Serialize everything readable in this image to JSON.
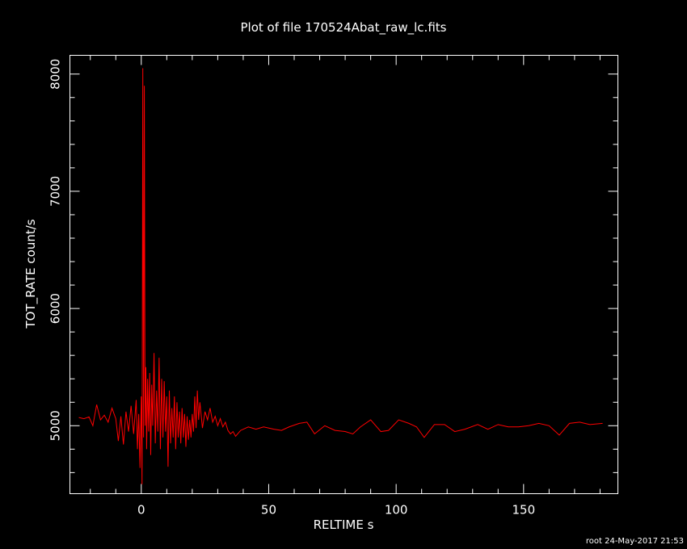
{
  "chart_data": {
    "type": "line",
    "title": "Plot of file 170524Abat_raw_lc.fits",
    "xlabel": "RELTIME  s",
    "ylabel": "TOT_RATE  count/s",
    "xlim": [
      -28,
      187
    ],
    "ylim": [
      4420,
      8160
    ],
    "x_major_ticks": [
      0,
      50,
      100,
      150
    ],
    "x_minor_step": 10,
    "y_major_ticks": [
      5000,
      6000,
      7000,
      8000
    ],
    "y_minor_step": 200,
    "grid": false,
    "legend": "none",
    "series": [
      {
        "color": "#ff0000",
        "points": [
          [
            -24.5,
            5070
          ],
          [
            -22.5,
            5060
          ],
          [
            -20.5,
            5075
          ],
          [
            -19,
            5000
          ],
          [
            -17.5,
            5180
          ],
          [
            -16,
            5050
          ],
          [
            -14.5,
            5090
          ],
          [
            -13,
            5030
          ],
          [
            -11.5,
            5150
          ],
          [
            -10,
            5060
          ],
          [
            -9,
            4870
          ],
          [
            -8,
            5080
          ],
          [
            -7,
            4840
          ],
          [
            -6,
            5120
          ],
          [
            -5,
            4950
          ],
          [
            -4,
            5170
          ],
          [
            -3,
            4930
          ],
          [
            -2,
            5220
          ],
          [
            -1.5,
            4800
          ],
          [
            -1,
            5100
          ],
          [
            -0.5,
            4640
          ],
          [
            0,
            5250
          ],
          [
            0.3,
            4500
          ],
          [
            0.6,
            8050
          ],
          [
            0.9,
            4900
          ],
          [
            1.2,
            7900
          ],
          [
            1.5,
            5000
          ],
          [
            1.8,
            5500
          ],
          [
            2.1,
            4800
          ],
          [
            2.5,
            5400
          ],
          [
            2.9,
            4950
          ],
          [
            3.3,
            5450
          ],
          [
            3.7,
            4750
          ],
          [
            4.1,
            5350
          ],
          [
            4.5,
            5000
          ],
          [
            5,
            5620
          ],
          [
            5.5,
            4850
          ],
          [
            6,
            5300
          ],
          [
            6.5,
            4950
          ],
          [
            7,
            5580
          ],
          [
            7.5,
            4800
          ],
          [
            8,
            5400
          ],
          [
            8.5,
            4900
          ],
          [
            9,
            5380
          ],
          [
            9.5,
            4950
          ],
          [
            10,
            5250
          ],
          [
            10.5,
            4650
          ],
          [
            11,
            5300
          ],
          [
            11.5,
            4850
          ],
          [
            12,
            5150
          ],
          [
            12.5,
            4900
          ],
          [
            13,
            5250
          ],
          [
            13.5,
            4800
          ],
          [
            14,
            5200
          ],
          [
            14.5,
            4900
          ],
          [
            15,
            5120
          ],
          [
            15.5,
            4850
          ],
          [
            16,
            5150
          ],
          [
            16.5,
            4900
          ],
          [
            17,
            5100
          ],
          [
            17.5,
            4820
          ],
          [
            18,
            5080
          ],
          [
            18.5,
            4880
          ],
          [
            19,
            5050
          ],
          [
            19.5,
            4900
          ],
          [
            20,
            5100
          ],
          [
            20.5,
            4950
          ],
          [
            21,
            5250
          ],
          [
            21.5,
            4980
          ],
          [
            22,
            5300
          ],
          [
            22.5,
            5050
          ],
          [
            23,
            5200
          ],
          [
            24,
            4980
          ],
          [
            25,
            5120
          ],
          [
            26,
            5050
          ],
          [
            27,
            5150
          ],
          [
            28,
            5030
          ],
          [
            29,
            5080
          ],
          [
            30,
            5000
          ],
          [
            31,
            5060
          ],
          [
            32,
            4990
          ],
          [
            33,
            5030
          ],
          [
            34,
            4960
          ],
          [
            35,
            4930
          ],
          [
            36,
            4950
          ],
          [
            37,
            4910
          ],
          [
            39,
            4960
          ],
          [
            42,
            4990
          ],
          [
            45,
            4970
          ],
          [
            48,
            4990
          ],
          [
            52,
            4970
          ],
          [
            55,
            4960
          ],
          [
            58,
            4990
          ],
          [
            62,
            5020
          ],
          [
            65,
            5030
          ],
          [
            68,
            4930
          ],
          [
            72,
            5000
          ],
          [
            76,
            4960
          ],
          [
            80,
            4950
          ],
          [
            83,
            4930
          ],
          [
            86,
            4990
          ],
          [
            90,
            5050
          ],
          [
            94,
            4950
          ],
          [
            97,
            4960
          ],
          [
            101,
            5050
          ],
          [
            105,
            5020
          ],
          [
            108,
            4990
          ],
          [
            111,
            4900
          ],
          [
            115,
            5010
          ],
          [
            119,
            5010
          ],
          [
            123,
            4950
          ],
          [
            127,
            4970
          ],
          [
            132,
            5010
          ],
          [
            136,
            4970
          ],
          [
            140,
            5010
          ],
          [
            144,
            4990
          ],
          [
            148,
            4990
          ],
          [
            152,
            5000
          ],
          [
            156,
            5020
          ],
          [
            160,
            5000
          ],
          [
            164,
            4920
          ],
          [
            168,
            5020
          ],
          [
            172,
            5030
          ],
          [
            176,
            5010
          ],
          [
            181,
            5020
          ]
        ]
      }
    ]
  },
  "footer": {
    "text": "root 24-May-2017 21:53"
  }
}
